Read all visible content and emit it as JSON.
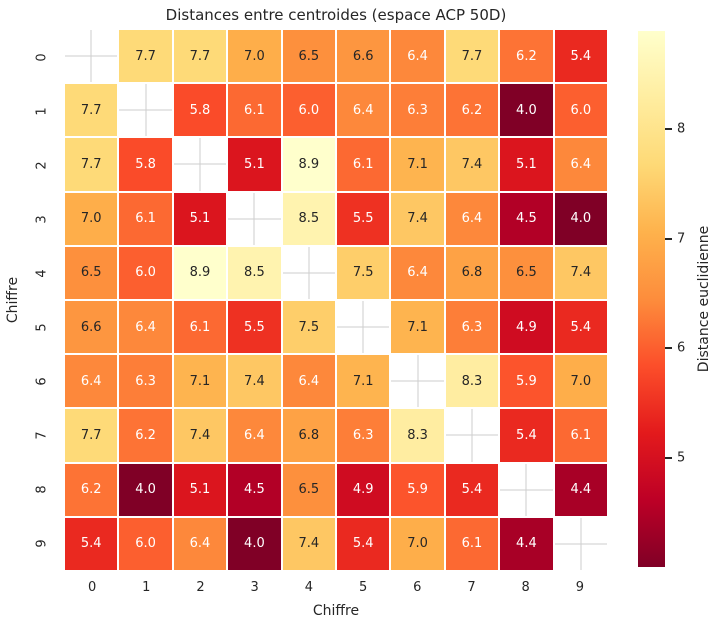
{
  "figure": {
    "background": "#ffffff"
  },
  "chart_data": {
    "type": "heatmap",
    "title": "Distances entre centroides (espace ACP 50D)",
    "xlabel": "Chiffre",
    "ylabel": "Chiffre",
    "x_tick_labels": [
      "0",
      "1",
      "2",
      "3",
      "4",
      "5",
      "6",
      "7",
      "8",
      "9"
    ],
    "y_tick_labels": [
      "0",
      "1",
      "2",
      "3",
      "4",
      "5",
      "6",
      "7",
      "8",
      "9"
    ],
    "matrix": [
      [
        null,
        7.7,
        7.7,
        7.0,
        6.5,
        6.6,
        6.4,
        7.7,
        6.2,
        5.4
      ],
      [
        7.7,
        null,
        5.8,
        6.1,
        6.0,
        6.4,
        6.3,
        6.2,
        4.0,
        6.0
      ],
      [
        7.7,
        5.8,
        null,
        5.1,
        8.9,
        6.1,
        7.1,
        7.4,
        5.1,
        6.4
      ],
      [
        7.0,
        6.1,
        5.1,
        null,
        8.5,
        5.5,
        7.4,
        6.4,
        4.5,
        4.0
      ],
      [
        6.5,
        6.0,
        8.9,
        8.5,
        null,
        7.5,
        6.4,
        6.8,
        6.5,
        7.4
      ],
      [
        6.6,
        6.4,
        6.1,
        5.5,
        7.5,
        null,
        7.1,
        6.3,
        4.9,
        5.4
      ],
      [
        6.4,
        6.3,
        7.1,
        7.4,
        6.4,
        7.1,
        null,
        8.3,
        5.9,
        7.0
      ],
      [
        7.7,
        6.2,
        7.4,
        6.4,
        6.8,
        6.3,
        8.3,
        null,
        5.4,
        6.1
      ],
      [
        6.2,
        4.0,
        5.1,
        4.5,
        6.5,
        4.9,
        5.9,
        5.4,
        null,
        4.4
      ],
      [
        5.4,
        6.0,
        6.4,
        4.0,
        7.4,
        5.4,
        7.0,
        6.1,
        4.4,
        null
      ]
    ],
    "mask": "diagonal",
    "value_decimals": 1,
    "colorbar": {
      "label": "Distance euclidienne",
      "ticks": [
        8,
        7,
        6,
        5
      ],
      "vmin": 4.0,
      "vmax": 8.9,
      "colormap": "YlOrRd_r",
      "colormap_stops": [
        "#ffffcc",
        "#ffeda0",
        "#fed976",
        "#feb24c",
        "#fd8d3c",
        "#fc4e2a",
        "#e31a1c",
        "#bd0026",
        "#800026"
      ]
    },
    "annotation_colors": {
      "dark_text": "#262626",
      "light_text": "#ffffff",
      "luminance_threshold": 0.408
    },
    "masked_cross_color": "#cdcdcd",
    "grid_gap_color": "#ffffff",
    "legend_position": "right-colorbar",
    "grid": "off"
  }
}
